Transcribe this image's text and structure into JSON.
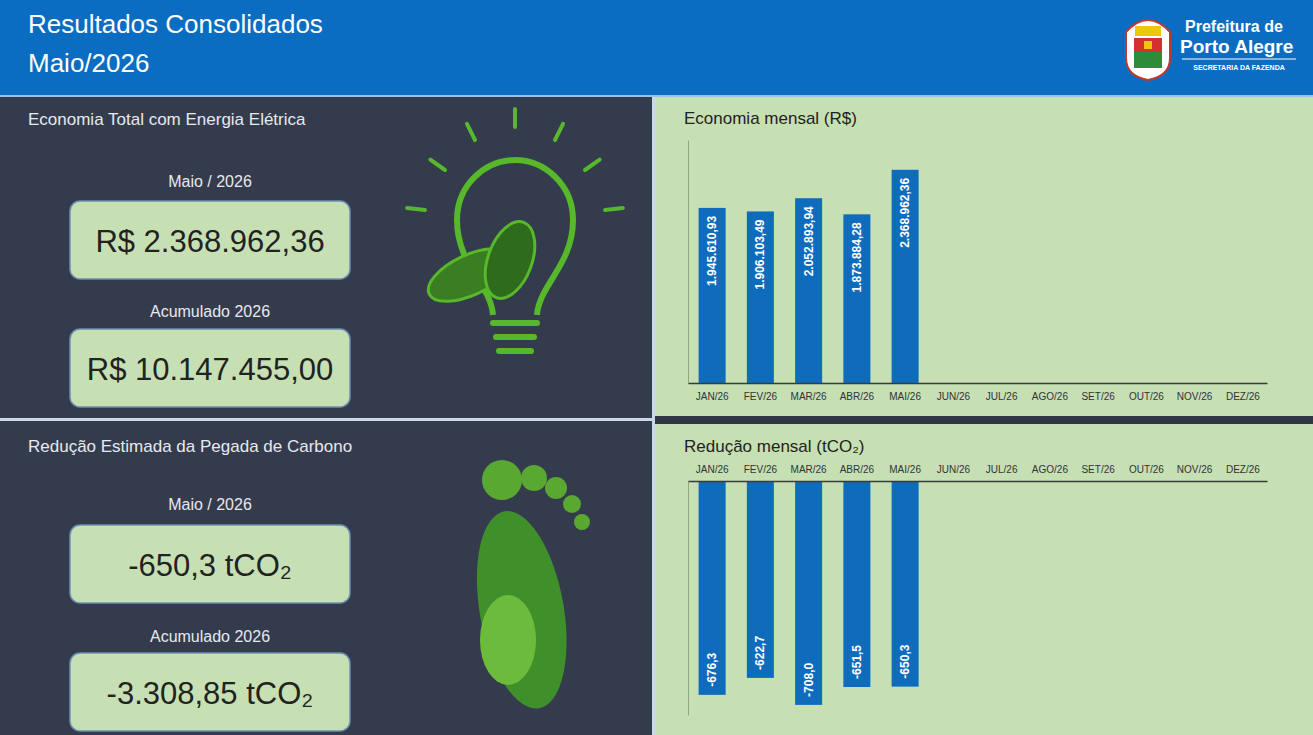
{
  "header": {
    "title_line1": "Resultados Consolidados",
    "title_line2": "Maio/2026",
    "logo_line1": "Prefeitura de",
    "logo_line2": "Porto Alegre",
    "logo_line3": "SECRETARIA DA FAZENDA"
  },
  "kpis": [
    {
      "title": "Economia Total com Energia Elétrica",
      "items": [
        {
          "label": "Maio / 2026",
          "value": "R$ 2.368.962,36"
        },
        {
          "label": "Acumulado 2026",
          "value": "R$ 10.147.455,00"
        }
      ]
    },
    {
      "title": "Redução Estimada da Pegada de Carbono",
      "items": [
        {
          "label": "Maio / 2026",
          "value": "-650,3 tCO₂"
        },
        {
          "label": "Acumulado 2026",
          "value": "-3.308,85 tCO₂"
        }
      ]
    }
  ],
  "chart_data": [
    {
      "type": "bar",
      "title": "Economia mensal (R$)",
      "categories": [
        "JAN/26",
        "FEV/26",
        "MAR/26",
        "ABR/26",
        "MAI/26",
        "JUN/26",
        "JUL/26",
        "AGO/26",
        "SET/26",
        "OUT/26",
        "NOV/26",
        "DEZ/26"
      ],
      "values": [
        1945610.93,
        1906103.49,
        2052893.94,
        1873884.28,
        2368962.36,
        null,
        null,
        null,
        null,
        null,
        null,
        null
      ],
      "value_labels": [
        "1.945.610,93",
        "1.906.103,49",
        "2.052.893,94",
        "1.873.884,28",
        "2.368.962,36",
        null,
        null,
        null,
        null,
        null,
        null,
        null
      ],
      "color": "#0f6cbd",
      "ylim": [
        0,
        2700000
      ],
      "data_labels": true,
      "tick_labels": "x",
      "grid": false
    },
    {
      "type": "bar",
      "title": "Redução mensal (tCO₂)",
      "categories": [
        "JAN/26",
        "FEV/26",
        "MAR/26",
        "ABR/26",
        "MAI/26",
        "JUN/26",
        "JUL/26",
        "AGO/26",
        "SET/26",
        "OUT/26",
        "NOV/26",
        "DEZ/26"
      ],
      "values": [
        -676.3,
        -622.7,
        -708.0,
        -651.5,
        -650.3,
        null,
        null,
        null,
        null,
        null,
        null,
        null
      ],
      "value_labels": [
        "-676,3",
        "-622,7",
        "-708,0",
        "-651,5",
        "-650,3",
        null,
        null,
        null,
        null,
        null,
        null,
        null
      ],
      "color": "#0f6cbd",
      "ylim": [
        -740,
        0
      ],
      "data_labels": true,
      "tick_labels": "x",
      "grid": false
    }
  ]
}
